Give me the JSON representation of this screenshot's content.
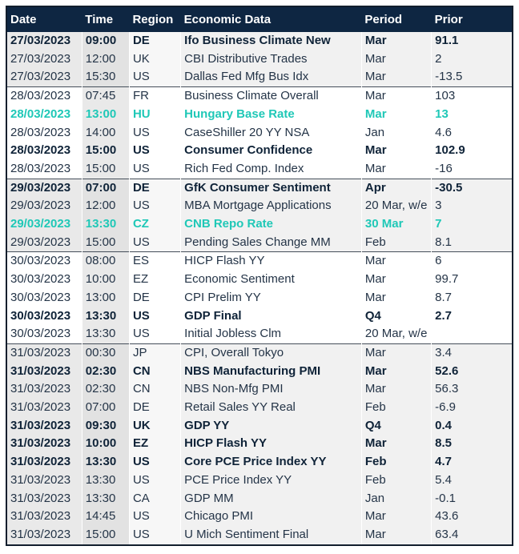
{
  "colors": {
    "header_bg": "#0e2642",
    "highlight_teal": "#1fc8b7",
    "text": "#243447",
    "text_bold": "#0f2338",
    "shaded_row": "#f1f1f1",
    "time_band": "#e2e2e2",
    "outer_border": "#121e2d"
  },
  "table": {
    "columns": [
      "Date",
      "Time",
      "Region",
      "Economic Data",
      "Period",
      "Prior"
    ],
    "rows": [
      {
        "date": "27/03/2023",
        "time": "09:00",
        "region": "DE",
        "event": "Ifo Business Climate New",
        "period": "Mar",
        "prior": "91.1",
        "emphasis": "bold",
        "group": 0
      },
      {
        "date": "27/03/2023",
        "time": "12:00",
        "region": "UK",
        "event": "CBI Distributive Trades",
        "period": "Mar",
        "prior": "2",
        "emphasis": "none",
        "group": 0
      },
      {
        "date": "27/03/2023",
        "time": "15:30",
        "region": "US",
        "event": "Dallas Fed Mfg Bus Idx",
        "period": "Mar",
        "prior": "-13.5",
        "emphasis": "none",
        "group": 0
      },
      {
        "date": "28/03/2023",
        "time": "07:45",
        "region": "FR",
        "event": "Business Climate Overall",
        "period": "Mar",
        "prior": "103",
        "emphasis": "none",
        "group": 1
      },
      {
        "date": "28/03/2023",
        "time": "13:00",
        "region": "HU",
        "event": "Hungary Base Rate",
        "period": "Mar",
        "prior": "13",
        "emphasis": "highlight",
        "group": 1
      },
      {
        "date": "28/03/2023",
        "time": "14:00",
        "region": "US",
        "event": "CaseShiller 20 YY NSA",
        "period": "Jan",
        "prior": "4.6",
        "emphasis": "none",
        "group": 1
      },
      {
        "date": "28/03/2023",
        "time": "15:00",
        "region": "US",
        "event": "Consumer Confidence",
        "period": "Mar",
        "prior": "102.9",
        "emphasis": "bold",
        "group": 1
      },
      {
        "date": "28/03/2023",
        "time": "15:00",
        "region": "US",
        "event": "Rich Fed Comp. Index",
        "period": "Mar",
        "prior": "-16",
        "emphasis": "none",
        "group": 1
      },
      {
        "date": "29/03/2023",
        "time": "07:00",
        "region": "DE",
        "event": "GfK Consumer Sentiment",
        "period": "Apr",
        "prior": "-30.5",
        "emphasis": "bold",
        "group": 2
      },
      {
        "date": "29/03/2023",
        "time": "12:00",
        "region": "US",
        "event": "MBA Mortgage Applications",
        "period": "20 Mar, w/e",
        "prior": "3",
        "emphasis": "none",
        "group": 2
      },
      {
        "date": "29/03/2023",
        "time": "13:30",
        "region": "CZ",
        "event": "CNB Repo Rate",
        "period": "30 Mar",
        "prior": "7",
        "emphasis": "highlight",
        "group": 2
      },
      {
        "date": "29/03/2023",
        "time": "15:00",
        "region": "US",
        "event": "Pending Sales Change MM",
        "period": "Feb",
        "prior": "8.1",
        "emphasis": "none",
        "group": 2
      },
      {
        "date": "30/03/2023",
        "time": "08:00",
        "region": "ES",
        "event": "HICP Flash YY",
        "period": "Mar",
        "prior": "6",
        "emphasis": "none",
        "group": 3
      },
      {
        "date": "30/03/2023",
        "time": "10:00",
        "region": "EZ",
        "event": "Economic Sentiment",
        "period": "Mar",
        "prior": "99.7",
        "emphasis": "none",
        "group": 3
      },
      {
        "date": "30/03/2023",
        "time": "13:00",
        "region": "DE",
        "event": "CPI Prelim YY",
        "period": "Mar",
        "prior": "8.7",
        "emphasis": "none",
        "group": 3
      },
      {
        "date": "30/03/2023",
        "time": "13:30",
        "region": "US",
        "event": "GDP Final",
        "period": "Q4",
        "prior": "2.7",
        "emphasis": "bold",
        "group": 3
      },
      {
        "date": "30/03/2023",
        "time": "13:30",
        "region": "US",
        "event": "Initial Jobless Clm",
        "period": "20 Mar, w/e",
        "prior": "",
        "emphasis": "none",
        "group": 3
      },
      {
        "date": "31/03/2023",
        "time": "00:30",
        "region": "JP",
        "event": "CPI, Overall Tokyo",
        "period": "Mar",
        "prior": "3.4",
        "emphasis": "none",
        "group": 4
      },
      {
        "date": "31/03/2023",
        "time": "02:30",
        "region": "CN",
        "event": "NBS Manufacturing PMI",
        "period": "Mar",
        "prior": "52.6",
        "emphasis": "bold",
        "group": 4
      },
      {
        "date": "31/03/2023",
        "time": "02:30",
        "region": "CN",
        "event": "NBS Non-Mfg PMI",
        "period": "Mar",
        "prior": "56.3",
        "emphasis": "none",
        "group": 4
      },
      {
        "date": "31/03/2023",
        "time": "07:00",
        "region": "DE",
        "event": "Retail Sales YY Real",
        "period": "Feb",
        "prior": "-6.9",
        "emphasis": "none",
        "group": 4
      },
      {
        "date": "31/03/2023",
        "time": "09:30",
        "region": "UK",
        "event": "GDP YY",
        "period": "Q4",
        "prior": "0.4",
        "emphasis": "bold",
        "group": 4
      },
      {
        "date": "31/03/2023",
        "time": "10:00",
        "region": "EZ",
        "event": "HICP Flash YY",
        "period": "Mar",
        "prior": "8.5",
        "emphasis": "bold",
        "group": 4
      },
      {
        "date": "31/03/2023",
        "time": "13:30",
        "region": "US",
        "event": "Core PCE Price Index YY",
        "period": "Feb",
        "prior": "4.7",
        "emphasis": "bold",
        "group": 4
      },
      {
        "date": "31/03/2023",
        "time": "13:30",
        "region": "US",
        "event": "PCE Price Index YY",
        "period": "Feb",
        "prior": "5.4",
        "emphasis": "none",
        "group": 4
      },
      {
        "date": "31/03/2023",
        "time": "13:30",
        "region": "CA",
        "event": "GDP MM",
        "period": "Jan",
        "prior": "-0.1",
        "emphasis": "none",
        "group": 4
      },
      {
        "date": "31/03/2023",
        "time": "14:45",
        "region": "US",
        "event": "Chicago PMI",
        "period": "Mar",
        "prior": "43.6",
        "emphasis": "none",
        "group": 4
      },
      {
        "date": "31/03/2023",
        "time": "15:00",
        "region": "US",
        "event": "U Mich Sentiment Final",
        "period": "Mar",
        "prior": "63.4",
        "emphasis": "none",
        "group": 4
      }
    ]
  }
}
